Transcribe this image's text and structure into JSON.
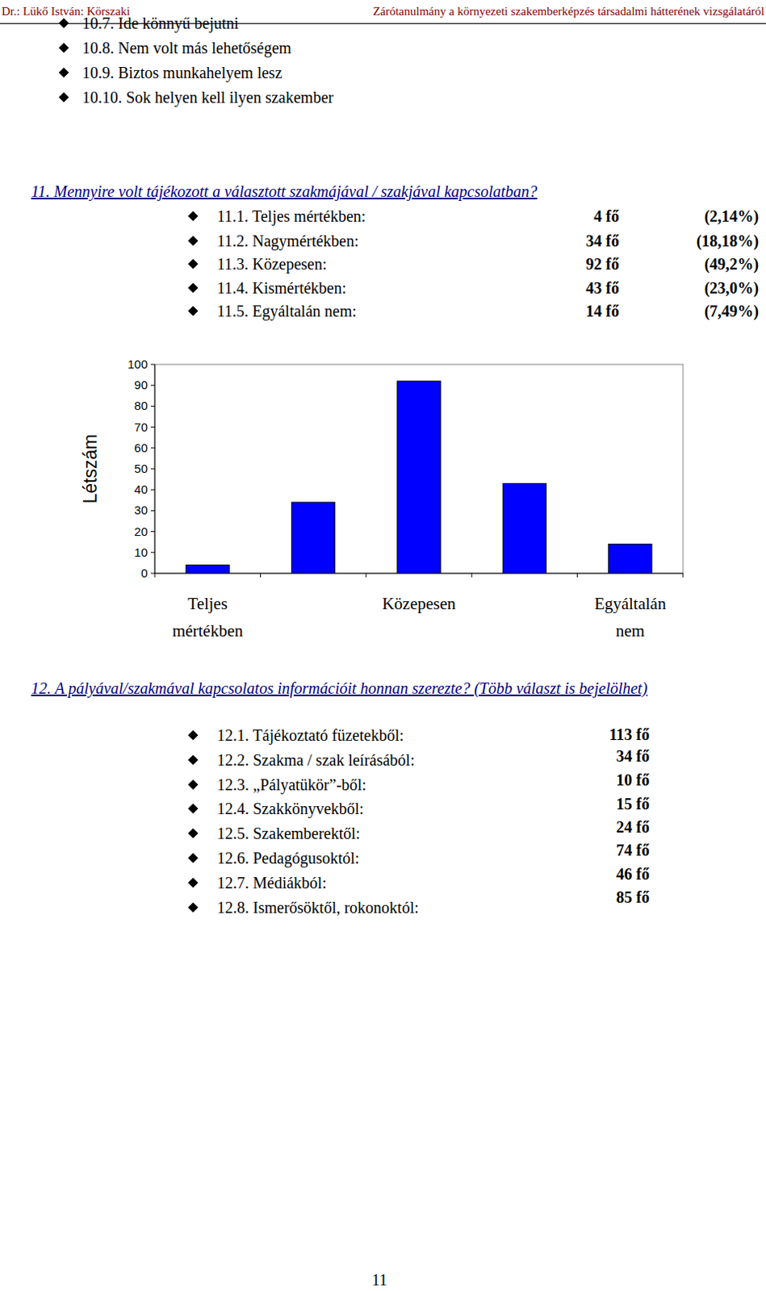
{
  "header": {
    "left": "Dr.: Lükő István: Körszaki",
    "right": "Zárótanulmány a környezeti szakemberképzés társadalmi hátterének vizsgálatáról"
  },
  "list_10": [
    "10.7. Ide könnyű bejutni",
    "10.8. Nem volt más lehetőségem",
    "10.9. Biztos munkahelyem lesz",
    "10.10. Sok helyen kell ilyen szakember"
  ],
  "question_11": {
    "title": "11. Mennyire volt tájékozott a választott szakmájával / szakjával kapcsolatban?",
    "items": [
      {
        "label": "11.1. Teljes mértékben:",
        "count": "4 fő",
        "percent": "(2,14%)"
      },
      {
        "label": "11.2. Nagymértékben:",
        "count": "34 fő",
        "percent": "(18,18%)"
      },
      {
        "label": "11.3. Közepesen:",
        "count": "92 fő",
        "percent": "(49,2%)"
      },
      {
        "label": "11.4. Kismértékben:",
        "count": "43 fő",
        "percent": "(23,0%)"
      },
      {
        "label": "11.5. Egyáltalán nem:",
        "count": "14 fő",
        "percent": "(7,49%)"
      }
    ]
  },
  "chart_data": {
    "type": "bar",
    "y_label": "Létszám",
    "categories": [
      "Teljes mértékben",
      null,
      "Közepesen",
      null,
      "Egyáltalán nem"
    ],
    "values": [
      4,
      34,
      92,
      43,
      14
    ],
    "color": "#0000ff",
    "ylim": [
      0,
      100
    ],
    "yticks": [
      0,
      10,
      20,
      30,
      40,
      50,
      60,
      70,
      80,
      90,
      100
    ],
    "grid": false
  },
  "question_12": {
    "title": "12. A pályával/szakmával kapcsolatos információit honnan szerezte? (Több választ is bejelölhet)",
    "items": [
      {
        "label": "12.1. Tájékoztató füzetekből:",
        "count": "113 fő"
      },
      {
        "label": "12.2. Szakma / szak leírásából:",
        "count": "34 fő"
      },
      {
        "label": "12.3. „Pályatükör”-ből:",
        "count": "10 fő"
      },
      {
        "label": "12.4. Szakkönyvekből:",
        "count": "15 fő"
      },
      {
        "label": "12.5. Szakemberektől:",
        "count": "24 fő"
      },
      {
        "label": "12.6. Pedagógusoktól:",
        "count": "74 fő"
      },
      {
        "label": "12.7. Médiákból:",
        "count": "46 fő"
      },
      {
        "label": "12.8. Ismerősöktől, rokonoktól:",
        "count": "85 fő"
      }
    ]
  },
  "page_number": "11"
}
